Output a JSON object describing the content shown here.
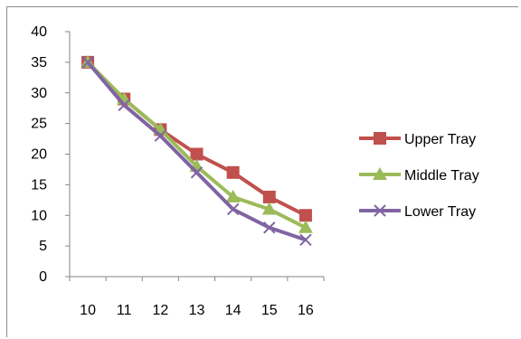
{
  "chart_data": {
    "type": "line",
    "title": "",
    "xlabel": "",
    "ylabel": "",
    "x": [
      "10",
      "11",
      "12",
      "13",
      "14",
      "15",
      "16"
    ],
    "ylim": [
      0,
      40
    ],
    "y_ticks": [
      "0",
      "5",
      "10",
      "15",
      "20",
      "25",
      "30",
      "35",
      "40"
    ],
    "grid": false,
    "legend_position": "right",
    "series": [
      {
        "name": "Upper Tray",
        "color": "#c0504d",
        "marker": "square",
        "values": [
          35,
          29,
          24,
          20,
          17,
          13,
          10
        ]
      },
      {
        "name": "Middle Tray",
        "color": "#9bbb59",
        "marker": "triangle",
        "values": [
          35,
          29,
          24,
          18,
          13,
          11,
          8
        ]
      },
      {
        "name": "Lower Tray",
        "color": "#8064a2",
        "marker": "x",
        "values": [
          35,
          28,
          23,
          17,
          11,
          8,
          6
        ]
      }
    ]
  }
}
